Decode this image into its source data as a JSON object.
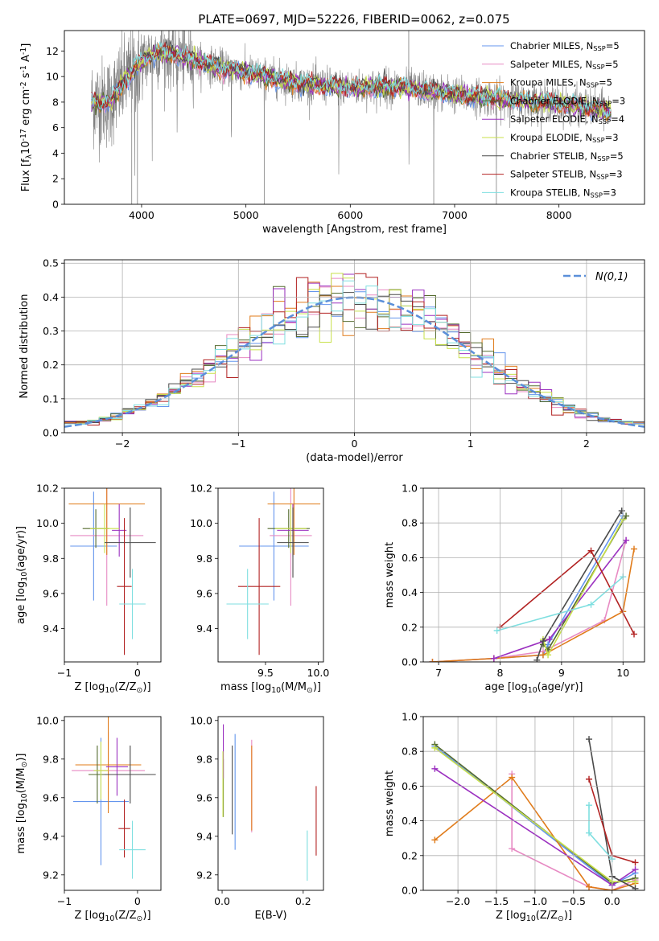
{
  "figure": {
    "title": "PLATE=0697, MJD=52226, FIBERID=0062, z=0.075"
  },
  "models": [
    {
      "label": "Chabrier MILES, N$_{SSP}$=5",
      "color": "#6495ed"
    },
    {
      "label": "Salpeter MILES, N$_{SSP}$=5",
      "color": "#e78ac3"
    },
    {
      "label": "Kroupa MILES, N$_{SSP}$=5",
      "color": "#e07b1a"
    },
    {
      "label": "Chabrier ELODIE, N$_{SSP}$=3",
      "color": "#556b2f"
    },
    {
      "label": "Salpeter ELODIE, N$_{SSP}$=4",
      "color": "#9b30c0"
    },
    {
      "label": "Kroupa ELODIE, N$_{SSP}$=3",
      "color": "#c8e04a"
    },
    {
      "label": "Chabrier STELIB, N$_{SSP}$=5",
      "color": "#4a4a4a"
    },
    {
      "label": "Salpeter STELIB, N$_{SSP}$=3",
      "color": "#b22222"
    },
    {
      "label": "Kroupa STELIB, N$_{SSP}$=3",
      "color": "#7fdfe0"
    }
  ],
  "chart_data": [
    {
      "id": "spectrum",
      "type": "line",
      "xlabel": "wavelength [Angstrom, rest frame]",
      "ylabel": "Flux [f$_\\lambda$10$^{-17}$ erg cm$^{-2}$ s$^{-1}$ A$^{-1}$]",
      "xlim": [
        3260,
        8820
      ],
      "ylim": [
        0,
        13.6
      ],
      "xticks": [
        4000,
        5000,
        6000,
        7000,
        8000
      ],
      "yticks": [
        0,
        2,
        4,
        6,
        8,
        10,
        12
      ],
      "grid": false,
      "legend": "top-right",
      "data_color": "#808080",
      "continuum_knots": {
        "x": [
          3520,
          3700,
          3850,
          3960,
          4100,
          4300,
          4600,
          5000,
          5500,
          6000,
          6500,
          7000,
          7500,
          8000,
          8500
        ],
        "y": [
          8.0,
          8.0,
          9.8,
          10.8,
          11.8,
          11.8,
          11.0,
          10.3,
          9.5,
          9.1,
          9.2,
          8.6,
          8.2,
          7.9,
          7.3
        ]
      },
      "data_range": [
        3520,
        8500
      ],
      "model_range": [
        3520,
        8500
      ]
    },
    {
      "id": "residuals",
      "type": "histogram",
      "xlabel": "(data-model)/error",
      "ylabel": "Normed distribution",
      "xlim": [
        -2.5,
        2.5
      ],
      "ylim": [
        0,
        0.51
      ],
      "xticks": [
        -2,
        -1,
        0,
        1,
        2
      ],
      "yticks": [
        0.0,
        0.1,
        0.2,
        0.3,
        0.4,
        0.5
      ],
      "grid": true,
      "legend": "top-right",
      "reference_label": "$\\mathcal{N}(0,1)$",
      "reference_color": "#5b8fd9",
      "bin_edges_start": -2.5,
      "bin_width": 0.1,
      "n_bins": 50
    },
    {
      "id": "z-age",
      "type": "errorbar",
      "xlabel": "Z [log$_{10}$(Z/Z$_\\odot$)]",
      "ylabel": "age  [log$_{10}$(age/yr)]",
      "xlim": [
        -1.0,
        0.32
      ],
      "ylim": [
        9.21,
        10.2
      ],
      "xticks": [
        -1,
        0
      ],
      "yticks": [
        9.4,
        9.6,
        9.8,
        10.0,
        10.2
      ],
      "points": [
        {
          "model": 0,
          "x": -0.6,
          "xerr": 0.32,
          "y": 9.87,
          "yerr": 0.31
        },
        {
          "model": 1,
          "x": -0.42,
          "xerr": 0.5,
          "y": 9.93,
          "yerr": 0.4
        },
        {
          "model": 2,
          "x": -0.42,
          "xerr": 0.52,
          "y": 10.11,
          "yerr": 0.29
        },
        {
          "model": 3,
          "x": -0.57,
          "xerr": 0.18,
          "y": 9.97,
          "yerr": 0.11
        },
        {
          "model": 4,
          "x": -0.25,
          "xerr": 0.1,
          "y": 9.96,
          "yerr": 0.15
        },
        {
          "model": 5,
          "x": -0.45,
          "xerr": 0.2,
          "y": 9.97,
          "yerr": 0.14
        },
        {
          "model": 6,
          "x": -0.1,
          "xerr": 0.35,
          "y": 9.89,
          "yerr": 0.2
        },
        {
          "model": 7,
          "x": -0.18,
          "xerr": 0.1,
          "y": 9.64,
          "yerr": 0.39
        },
        {
          "model": 8,
          "x": -0.07,
          "xerr": 0.18,
          "y": 9.54,
          "yerr": 0.2
        }
      ]
    },
    {
      "id": "mass-age",
      "type": "errorbar",
      "xlabel": "mass [log$_{10}$(M/M$_\\odot$)]",
      "ylabel": "",
      "xlim": [
        9.05,
        10.05
      ],
      "ylim": [
        9.21,
        10.2
      ],
      "xticks": [
        9.5,
        10.0
      ],
      "yticks": [
        9.4,
        9.6,
        9.8,
        10.0,
        10.2
      ],
      "points": [
        {
          "model": 0,
          "x": 9.58,
          "xerr": 0.33,
          "y": 9.87,
          "yerr": 0.31
        },
        {
          "model": 1,
          "x": 9.74,
          "xerr": 0.2,
          "y": 9.93,
          "yerr": 0.4
        },
        {
          "model": 2,
          "x": 9.77,
          "xerr": 0.25,
          "y": 10.11,
          "yerr": 0.29
        },
        {
          "model": 3,
          "x": 9.72,
          "xerr": 0.2,
          "y": 9.97,
          "yerr": 0.11
        },
        {
          "model": 4,
          "x": 9.76,
          "xerr": 0.15,
          "y": 9.96,
          "yerr": 0.15
        },
        {
          "model": 5,
          "x": 9.74,
          "xerr": 0.15,
          "y": 9.97,
          "yerr": 0.14
        },
        {
          "model": 6,
          "x": 9.76,
          "xerr": 0.15,
          "y": 9.89,
          "yerr": 0.2
        },
        {
          "model": 7,
          "x": 9.44,
          "xerr": 0.2,
          "y": 9.64,
          "yerr": 0.39
        },
        {
          "model": 8,
          "x": 9.33,
          "xerr": 0.2,
          "y": 9.54,
          "yerr": 0.2
        }
      ]
    },
    {
      "id": "age-weight",
      "type": "line",
      "xlabel": "age  [log$_{10}$(age/yr)]",
      "ylabel": "mass weight",
      "xlim": [
        6.75,
        10.35
      ],
      "ylim": [
        0,
        1.0
      ],
      "xticks": [
        7,
        8,
        9,
        10
      ],
      "yticks": [
        0.0,
        0.2,
        0.4,
        0.6,
        0.8,
        1.0
      ],
      "grid": true,
      "series": [
        {
          "model": 0,
          "x": [
            6.9,
            7.9,
            8.7,
            8.78,
            10.0
          ],
          "y": [
            0.0,
            0.02,
            0.04,
            0.1,
            0.84
          ]
        },
        {
          "model": 1,
          "x": [
            6.9,
            7.9,
            8.7,
            9.7,
            10.05
          ],
          "y": [
            0.0,
            0.02,
            0.06,
            0.24,
            0.7
          ]
        },
        {
          "model": 2,
          "x": [
            6.9,
            7.9,
            8.7,
            10.0,
            10.18
          ],
          "y": [
            0.0,
            0.02,
            0.04,
            0.29,
            0.65
          ]
        },
        {
          "model": 3,
          "x": [
            8.7,
            8.78,
            10.05
          ],
          "y": [
            0.1,
            0.07,
            0.84
          ]
        },
        {
          "model": 4,
          "x": [
            7.9,
            8.8,
            10.05
          ],
          "y": [
            0.02,
            0.13,
            0.7
          ]
        },
        {
          "model": 5,
          "x": [
            8.7,
            8.78,
            10.0
          ],
          "y": [
            0.13,
            0.04,
            0.82
          ]
        },
        {
          "model": 6,
          "x": [
            8.6,
            8.7,
            9.98
          ],
          "y": [
            0.01,
            0.12,
            0.87
          ]
        },
        {
          "model": 7,
          "x": [
            8.0,
            9.48,
            10.18
          ],
          "y": [
            0.2,
            0.64,
            0.16
          ]
        },
        {
          "model": 8,
          "x": [
            7.95,
            9.48,
            10.0
          ],
          "y": [
            0.18,
            0.33,
            0.49
          ]
        }
      ]
    },
    {
      "id": "z-mass",
      "type": "errorbar",
      "xlabel": "Z [log$_{10}$(Z/Z$_\\odot$)]",
      "ylabel": "mass [log$_{10}$(M/M$_\\odot$)]",
      "xlim": [
        -1.0,
        0.32
      ],
      "ylim": [
        9.12,
        10.02
      ],
      "xticks": [
        -1,
        0
      ],
      "yticks": [
        9.2,
        9.4,
        9.6,
        9.8,
        10.0
      ],
      "points": [
        {
          "model": 0,
          "x": -0.5,
          "xerr": 0.38,
          "y": 9.58,
          "yerr": 0.33
        },
        {
          "model": 1,
          "x": -0.4,
          "xerr": 0.5,
          "y": 9.74,
          "yerr": 0.2
        },
        {
          "model": 2,
          "x": -0.4,
          "xerr": 0.45,
          "y": 9.77,
          "yerr": 0.25
        },
        {
          "model": 3,
          "x": -0.55,
          "xerr": 0.12,
          "y": 9.72,
          "yerr": 0.15
        },
        {
          "model": 4,
          "x": -0.28,
          "xerr": 0.15,
          "y": 9.76,
          "yerr": 0.15
        },
        {
          "model": 5,
          "x": -0.5,
          "xerr": 0.1,
          "y": 9.74,
          "yerr": 0.15
        },
        {
          "model": 6,
          "x": -0.1,
          "xerr": 0.35,
          "y": 9.72,
          "yerr": 0.15
        },
        {
          "model": 7,
          "x": -0.18,
          "xerr": 0.08,
          "y": 9.44,
          "yerr": 0.15
        },
        {
          "model": 8,
          "x": -0.07,
          "xerr": 0.18,
          "y": 9.33,
          "yerr": 0.15
        }
      ]
    },
    {
      "id": "ebv-mass",
      "type": "errorbar",
      "xlabel": "E(B-V)",
      "ylabel": "",
      "xlim": [
        -0.01,
        0.25
      ],
      "ylim": [
        9.12,
        10.02
      ],
      "xticks": [
        0.0,
        0.2
      ],
      "yticks": [
        9.2,
        9.4,
        9.6,
        9.8,
        10.0
      ],
      "points": [
        {
          "model": 0,
          "x": 0.032,
          "xerr": 0,
          "y": 9.63,
          "yerr": 0.3
        },
        {
          "model": 1,
          "x": 0.073,
          "xerr": 0,
          "y": 9.66,
          "yerr": 0.24
        },
        {
          "model": 2,
          "x": 0.073,
          "xerr": 0,
          "y": 9.65,
          "yerr": 0.22
        },
        {
          "model": 3,
          "x": 0.003,
          "xerr": 0,
          "y": 9.65,
          "yerr": 0.15
        },
        {
          "model": 4,
          "x": 0.003,
          "xerr": 0,
          "y": 9.84,
          "yerr": 0.14
        },
        {
          "model": 5,
          "x": 0.002,
          "xerr": 0,
          "y": 9.67,
          "yerr": 0.17
        },
        {
          "model": 6,
          "x": 0.025,
          "xerr": 0,
          "y": 9.64,
          "yerr": 0.23
        },
        {
          "model": 7,
          "x": 0.232,
          "xerr": 0,
          "y": 9.48,
          "yerr": 0.18
        },
        {
          "model": 8,
          "x": 0.21,
          "xerr": 0,
          "y": 9.3,
          "yerr": 0.13
        }
      ]
    },
    {
      "id": "z-weight",
      "type": "line",
      "xlabel": "Z [log$_{10}$(Z/Z$_\\odot$)]",
      "ylabel": "mass weight",
      "xlim": [
        -2.45,
        0.42
      ],
      "ylim": [
        0,
        1.0
      ],
      "xticks": [
        -2.0,
        -1.5,
        -1.0,
        -0.5,
        0.0
      ],
      "yticks": [
        0.0,
        0.2,
        0.4,
        0.6,
        0.8,
        1.0
      ],
      "grid": true,
      "series": [
        {
          "model": 0,
          "x": [
            -2.3,
            0.0,
            0.3
          ],
          "y": [
            0.83,
            0.03,
            0.1
          ]
        },
        {
          "model": 1,
          "x": [
            -1.3,
            -1.3,
            -0.3,
            0.0,
            0.3
          ],
          "y": [
            0.67,
            0.24,
            0.02,
            0.0,
            0.06
          ]
        },
        {
          "model": 2,
          "x": [
            -2.3,
            -1.3,
            -0.3,
            0.0,
            0.3
          ],
          "y": [
            0.29,
            0.65,
            0.02,
            0.0,
            0.04
          ]
        },
        {
          "model": 3,
          "x": [
            -2.3,
            0.0,
            0.3
          ],
          "y": [
            0.84,
            0.04,
            0.07
          ]
        },
        {
          "model": 4,
          "x": [
            -2.3,
            0.0,
            0.3
          ],
          "y": [
            0.7,
            0.03,
            0.12
          ]
        },
        {
          "model": 5,
          "x": [
            -2.3,
            0.0,
            0.3
          ],
          "y": [
            0.82,
            0.05,
            0.05
          ]
        },
        {
          "model": 6,
          "x": [
            -0.3,
            0.0,
            0.3
          ],
          "y": [
            0.87,
            0.08,
            0.01
          ]
        },
        {
          "model": 7,
          "x": [
            -0.3,
            0.0,
            0.3
          ],
          "y": [
            0.64,
            0.2,
            0.16
          ]
        },
        {
          "model": 8,
          "x": [
            -0.3,
            -0.3,
            0.0
          ],
          "y": [
            0.49,
            0.33,
            0.18
          ]
        }
      ]
    }
  ]
}
